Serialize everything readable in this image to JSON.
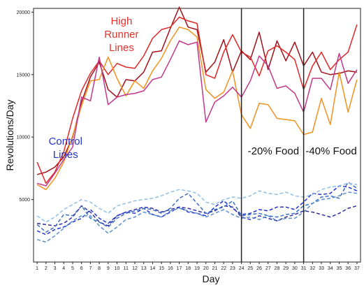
{
  "chart_data": {
    "type": "line",
    "title": "",
    "xlabel": "Day",
    "ylabel": "Revolutions/Day",
    "x": [
      1,
      2,
      3,
      4,
      5,
      6,
      7,
      8,
      9,
      10,
      11,
      12,
      13,
      14,
      15,
      16,
      17,
      18,
      19,
      20,
      21,
      22,
      23,
      24,
      25,
      26,
      27,
      28,
      29,
      30,
      31,
      32,
      33,
      34,
      35,
      36,
      37
    ],
    "xlim": [
      0.6,
      37.4
    ],
    "ylim": [
      0,
      20300
    ],
    "yticks": [
      5000,
      10000,
      15000,
      20000
    ],
    "ytick_labels": [
      "5000",
      "10000",
      "15000",
      "20000"
    ],
    "xtick_labels": [
      "1",
      "2",
      "3",
      "4",
      "5",
      "6",
      "7",
      "8",
      "9",
      "10",
      "11",
      "12",
      "13",
      "14",
      "15",
      "16",
      "17",
      "18",
      "19",
      "20",
      "21",
      "22",
      "23",
      "24",
      "25",
      "26",
      "27",
      "28",
      "29",
      "30",
      "31",
      "32",
      "33",
      "34",
      "35",
      "36",
      "37"
    ],
    "grid": false,
    "vlines": [
      24,
      31
    ],
    "annotations": [
      {
        "text_lines": [
          "High",
          "Runner",
          "Lines"
        ],
        "color": "#e8312a",
        "x": 10.5,
        "y": 19000
      },
      {
        "text_lines": [
          "Control",
          "Lines"
        ],
        "color": "#2233cc",
        "x": 4.2,
        "y": 9400
      },
      {
        "text_lines": [
          "-20% Food"
        ],
        "color": "#111111",
        "x": 27.6,
        "y": 8600
      },
      {
        "text_lines": [
          "-40% Food"
        ],
        "color": "#111111",
        "x": 34.1,
        "y": 8600
      }
    ],
    "series": [
      {
        "color": "#a01218",
        "style": "solid",
        "values": [
          7000,
          7200,
          7600,
          8400,
          10000,
          12800,
          14800,
          16000,
          13800,
          13200,
          14600,
          14500,
          15200,
          16800,
          16900,
          18700,
          20400,
          18800,
          18600,
          15200,
          16000,
          17800,
          15200,
          16900,
          16200,
          18400,
          15400,
          17700,
          16100,
          17600,
          15700,
          16800,
          15200,
          15000,
          15100,
          15300,
          15200
        ]
      },
      {
        "color": "#e02828",
        "style": "solid",
        "values": [
          8000,
          6300,
          7200,
          8800,
          11500,
          13700,
          15100,
          16100,
          15000,
          15900,
          15600,
          15500,
          16500,
          17900,
          18600,
          18800,
          19600,
          19300,
          19100,
          15000,
          14700,
          16800,
          18200,
          16800,
          16400,
          14900,
          16900,
          17300,
          16800,
          16200,
          13800,
          15700,
          16800,
          15400,
          16200,
          16800,
          19000
        ]
      },
      {
        "color": "#f0921e",
        "style": "solid",
        "values": [
          6200,
          5800,
          6700,
          8000,
          10100,
          12500,
          14500,
          14600,
          16400,
          14700,
          13300,
          14500,
          13900,
          15300,
          16300,
          17700,
          18800,
          18600,
          18000,
          13800,
          13100,
          13600,
          15300,
          11800,
          10700,
          12700,
          12600,
          11500,
          11400,
          11300,
          10200,
          10400,
          13100,
          11000,
          15200,
          12000,
          14600
        ]
      },
      {
        "color": "#c0398a",
        "style": "solid",
        "values": [
          6300,
          6100,
          7100,
          8200,
          9200,
          13200,
          12900,
          16400,
          12600,
          13200,
          13400,
          13500,
          13700,
          14600,
          14800,
          16200,
          17700,
          17400,
          17600,
          11200,
          12800,
          13300,
          14000,
          13200,
          14500,
          16500,
          15700,
          13900,
          14100,
          13500,
          12000,
          14700,
          14700,
          13800,
          16700,
          14300,
          15400
        ]
      },
      {
        "color": "#2d2ea8",
        "style": "dashed",
        "values": [
          3100,
          3000,
          2900,
          3100,
          3600,
          4500,
          4000,
          3200,
          2900,
          3700,
          4000,
          4200,
          4400,
          4300,
          4000,
          4200,
          4400,
          4300,
          4100,
          3900,
          4100,
          4500,
          4400,
          3600,
          3400,
          3700,
          3500,
          3300,
          3600,
          3800,
          4100,
          4000,
          3800,
          3600,
          3900,
          4300,
          4500
        ]
      },
      {
        "color": "#2233cc",
        "style": "dashed",
        "values": [
          2500,
          2200,
          2600,
          2800,
          3200,
          3500,
          4200,
          3500,
          3100,
          3700,
          4000,
          3900,
          4300,
          3800,
          3600,
          4000,
          4400,
          4000,
          3900,
          3700,
          4400,
          4900,
          4300,
          3800,
          3900,
          4200,
          4100,
          4400,
          4400,
          4200,
          4800,
          5500,
          5400,
          5500,
          6100,
          6000,
          5700
        ]
      },
      {
        "color": "#3a6fbf",
        "style": "dashed",
        "values": [
          3000,
          2400,
          2800,
          3800,
          3700,
          4500,
          3500,
          3200,
          2800,
          3500,
          3900,
          4100,
          4300,
          4200,
          3900,
          4300,
          5100,
          5500,
          4700,
          3900,
          4200,
          4400,
          4900,
          3700,
          3800,
          3900,
          3700,
          3600,
          3800,
          3900,
          4500,
          4700,
          5200,
          5300,
          5100,
          6400,
          5900
        ]
      },
      {
        "color": "#5b8fd0",
        "style": "dashed",
        "values": [
          1800,
          1600,
          2100,
          2700,
          3300,
          3700,
          3700,
          2900,
          2300,
          2800,
          3400,
          3600,
          4000,
          3800,
          3600,
          4100,
          4300,
          4100,
          3900,
          3600,
          3900,
          4200,
          3800,
          3500,
          3600,
          3400,
          3700,
          3300,
          3500,
          3500,
          4000,
          4700,
          5000,
          5100,
          5300,
          5600,
          5500
        ]
      },
      {
        "color": "#8ec0ea",
        "style": "dashed",
        "values": [
          3700,
          3200,
          3600,
          4200,
          4600,
          5000,
          4800,
          4300,
          3900,
          4500,
          4700,
          4900,
          5000,
          5100,
          5300,
          5600,
          5800,
          5700,
          5500,
          4800,
          4600,
          5000,
          5200,
          5100,
          5300,
          5700,
          5500,
          5400,
          5600,
          5300,
          5200,
          5400,
          5800,
          6000,
          6100,
          6300,
          6200
        ]
      }
    ]
  }
}
